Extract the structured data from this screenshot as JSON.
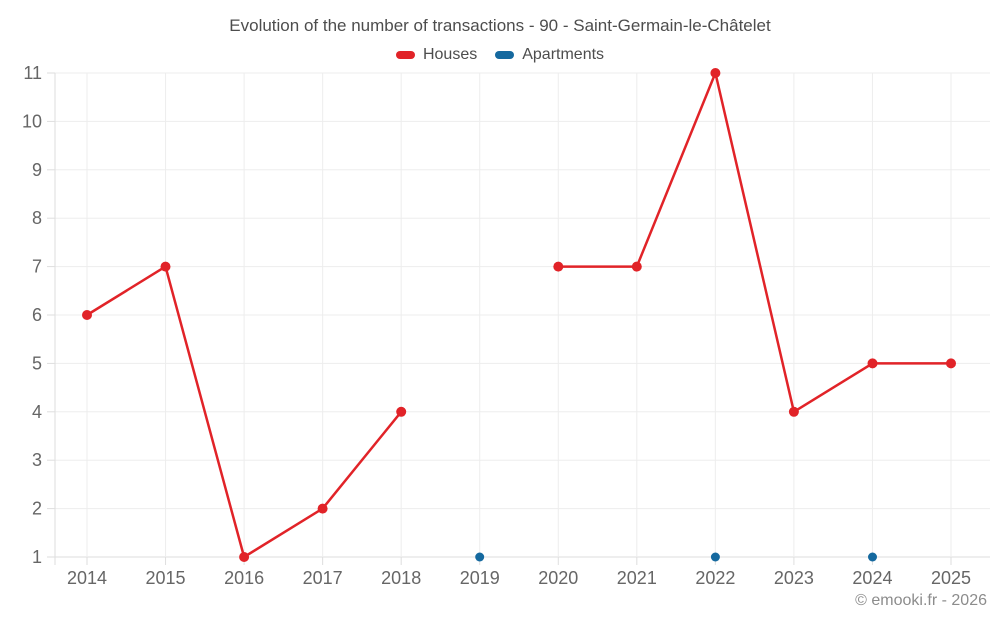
{
  "chart_data": {
    "type": "line",
    "title": "Evolution of the number of transactions - 90 - Saint-Germain-le-Châtelet",
    "categories": [
      2014,
      2015,
      2016,
      2017,
      2018,
      2019,
      2020,
      2021,
      2022,
      2023,
      2024,
      2025
    ],
    "series": [
      {
        "name": "Houses",
        "color": "#e12328",
        "marker_radius": 5,
        "values": [
          6,
          7,
          1,
          2,
          4,
          null,
          7,
          7,
          11,
          4,
          5,
          5
        ]
      },
      {
        "name": "Apartments",
        "color": "#15699f",
        "marker_radius": 4.5,
        "values": [
          null,
          null,
          null,
          null,
          null,
          1,
          null,
          null,
          1,
          null,
          1,
          null
        ]
      }
    ],
    "xlabel": "",
    "ylabel": "",
    "ylim": [
      1,
      11
    ],
    "yticks": [
      1,
      2,
      3,
      4,
      5,
      6,
      7,
      8,
      9,
      10,
      11
    ],
    "grid": true,
    "legend_position": "top"
  },
  "colors": {
    "grid": "#ededed",
    "axis": "#dedede",
    "axis_text": "#666666",
    "title_text": "#4d4d4d",
    "copyright_text": "#8c8c8c"
  },
  "footer": {
    "copyright": "© emooki.fr - 2026"
  }
}
